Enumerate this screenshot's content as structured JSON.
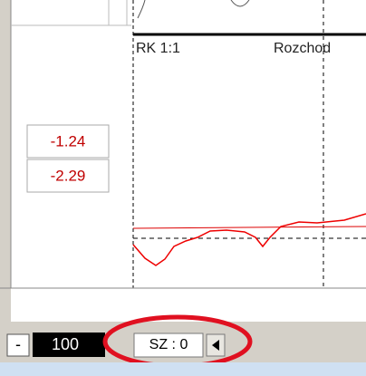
{
  "chart_labels": [
    "RK 1:1",
    "Rozchod"
  ],
  "readouts": [
    "-1.24",
    "-2.29"
  ],
  "toolbar": {
    "minus": "-",
    "zoom": "100",
    "status": "SZ : 0"
  }
}
